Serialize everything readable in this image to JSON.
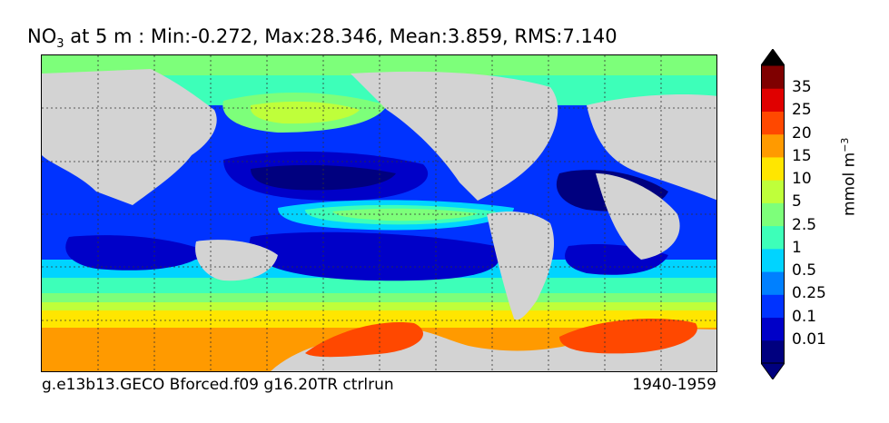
{
  "title": {
    "species_main": "NO",
    "species_sub": "3",
    "rest": " at 5 m : Min:-0.272, Max:28.346, Mean:3.859, RMS:7.140"
  },
  "footer": {
    "run_name": "g.e13b13.GECO Bforced.f09 g16.20TR ctrlrun",
    "period": "1940-1959"
  },
  "colorbar": {
    "units_main": "mmol m",
    "units_sup": "−3",
    "tick_labels": [
      "0.01",
      "0.1",
      "0.25",
      "0.5",
      "1",
      "2.5",
      "5",
      "10",
      "15",
      "20",
      "25",
      "35"
    ],
    "colors": [
      "#00007f",
      "#0000c8",
      "#0033ff",
      "#0080ff",
      "#00d4ff",
      "#3dffb9",
      "#7dff7a",
      "#bfff3a",
      "#ffe600",
      "#ff9a00",
      "#ff4800",
      "#e00000",
      "#7f0000"
    ],
    "under_color": "#00007f",
    "over_color": "#000000"
  },
  "map": {
    "land_color": "#d3d3d3",
    "grid": true
  }
}
